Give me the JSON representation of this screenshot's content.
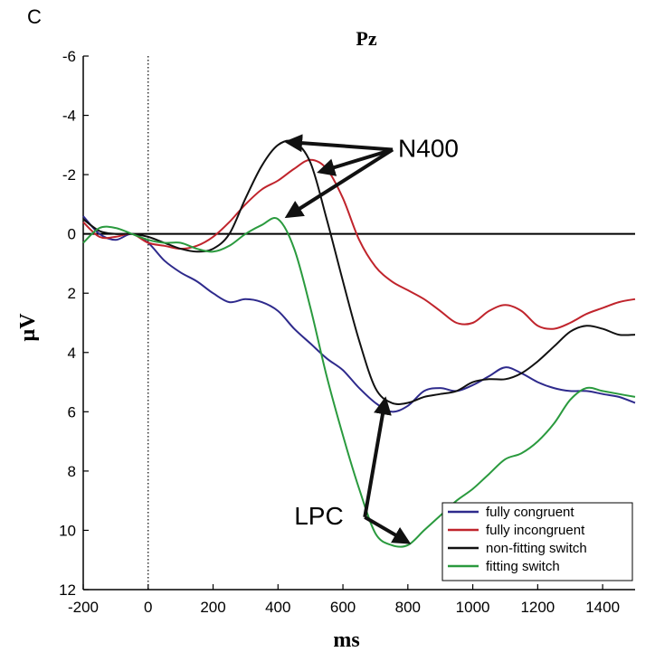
{
  "panel_label": "C",
  "chart_data": {
    "type": "line",
    "title": "Pz",
    "xlabel": "ms",
    "ylabel": "µV",
    "xlim": [
      -200,
      1500
    ],
    "ylim": [
      12,
      -6
    ],
    "y_inverted": true,
    "x_ticks": [
      -200,
      0,
      200,
      400,
      600,
      800,
      1000,
      1200,
      1400
    ],
    "y_ticks": [
      -6,
      -4,
      -2,
      0,
      2,
      4,
      6,
      8,
      10,
      12
    ],
    "grid": false,
    "legend": "bottom-right",
    "zero_line": 0,
    "onset_marker_x": 0,
    "colors": {
      "fully_congruent": "#2e2a8c",
      "fully_incongruent": "#c0242c",
      "non_fitting_switch": "#111111",
      "fitting_switch": "#2a9a3e"
    },
    "series": [
      {
        "name": "fully congruent",
        "color": "#2e2a8c",
        "x": [
          -200,
          -150,
          -100,
          -50,
          0,
          50,
          100,
          150,
          200,
          250,
          300,
          350,
          400,
          450,
          500,
          550,
          600,
          650,
          700,
          750,
          800,
          850,
          900,
          950,
          1000,
          1050,
          1100,
          1150,
          1200,
          1250,
          1300,
          1350,
          1400,
          1450,
          1500
        ],
        "y": [
          -0.6,
          0.0,
          0.2,
          0.0,
          0.3,
          0.9,
          1.3,
          1.6,
          2.0,
          2.3,
          2.2,
          2.3,
          2.6,
          3.2,
          3.7,
          4.2,
          4.6,
          5.2,
          5.7,
          6.0,
          5.8,
          5.3,
          5.2,
          5.3,
          5.1,
          4.8,
          4.5,
          4.7,
          5.0,
          5.2,
          5.3,
          5.3,
          5.4,
          5.5,
          5.7
        ]
      },
      {
        "name": "fully incongruent",
        "color": "#c0242c",
        "x": [
          -200,
          -150,
          -100,
          -50,
          0,
          50,
          100,
          150,
          200,
          250,
          300,
          350,
          400,
          450,
          500,
          550,
          600,
          650,
          700,
          750,
          800,
          850,
          900,
          950,
          1000,
          1050,
          1100,
          1150,
          1200,
          1250,
          1300,
          1350,
          1400,
          1450,
          1500
        ],
        "y": [
          -0.4,
          0.1,
          0.1,
          0.0,
          0.3,
          0.4,
          0.5,
          0.4,
          0.1,
          -0.4,
          -1.0,
          -1.5,
          -1.8,
          -2.2,
          -2.5,
          -2.2,
          -1.2,
          0.2,
          1.1,
          1.6,
          1.9,
          2.2,
          2.6,
          3.0,
          3.0,
          2.6,
          2.4,
          2.6,
          3.1,
          3.2,
          3.0,
          2.7,
          2.5,
          2.3,
          2.2
        ]
      },
      {
        "name": "non-fitting switch",
        "color": "#111111",
        "x": [
          -200,
          -150,
          -100,
          -50,
          0,
          50,
          100,
          150,
          200,
          250,
          300,
          350,
          400,
          450,
          500,
          550,
          600,
          650,
          700,
          750,
          800,
          850,
          900,
          950,
          1000,
          1050,
          1100,
          1150,
          1200,
          1250,
          1300,
          1350,
          1400,
          1450,
          1500
        ],
        "y": [
          -0.5,
          -0.1,
          0.0,
          0.0,
          0.1,
          0.3,
          0.5,
          0.6,
          0.5,
          0.0,
          -1.2,
          -2.3,
          -3.0,
          -3.1,
          -2.4,
          -0.5,
          1.6,
          3.6,
          5.2,
          5.7,
          5.7,
          5.5,
          5.4,
          5.3,
          5.0,
          4.9,
          4.9,
          4.7,
          4.3,
          3.8,
          3.3,
          3.1,
          3.2,
          3.4,
          3.4
        ]
      },
      {
        "name": "fitting switch",
        "color": "#2a9a3e",
        "x": [
          -200,
          -150,
          -100,
          -50,
          0,
          50,
          100,
          150,
          200,
          250,
          300,
          350,
          400,
          450,
          500,
          550,
          600,
          650,
          700,
          750,
          800,
          850,
          900,
          950,
          1000,
          1050,
          1100,
          1150,
          1200,
          1250,
          1300,
          1350,
          1400,
          1450,
          1500
        ],
        "y": [
          0.3,
          -0.2,
          -0.2,
          0.0,
          0.2,
          0.3,
          0.3,
          0.5,
          0.6,
          0.4,
          0.0,
          -0.3,
          -0.5,
          0.5,
          2.5,
          4.8,
          6.8,
          8.6,
          10.1,
          10.5,
          10.5,
          10.0,
          9.5,
          9.0,
          8.6,
          8.1,
          7.6,
          7.4,
          7.0,
          6.4,
          5.6,
          5.2,
          5.3,
          5.4,
          5.5
        ]
      }
    ],
    "annotations": [
      {
        "text": "N400",
        "arrow_targets": [
          [
            430,
            -3.1
          ],
          [
            530,
            -2.1
          ],
          [
            430,
            -0.6
          ]
        ],
        "label_at": [
          770,
          -2.6
        ]
      },
      {
        "text": "LPC",
        "arrow_targets": [
          [
            730,
            5.6
          ],
          [
            800,
            10.4
          ]
        ],
        "label_at": [
          450,
          9.8
        ]
      }
    ]
  }
}
